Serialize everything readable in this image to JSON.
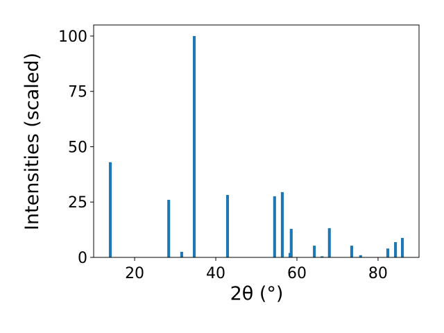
{
  "chart_data": {
    "type": "bar",
    "xlabel": "2θ (°)",
    "ylabel": "Intensities (scaled)",
    "x": [
      14.0,
      28.4,
      31.6,
      34.7,
      42.9,
      54.5,
      56.4,
      58.3,
      58.6,
      64.3,
      66.2,
      68.0,
      73.5,
      75.7,
      82.4,
      84.3,
      86.0
    ],
    "values": [
      43,
      26,
      2.5,
      100,
      28.2,
      27.6,
      29.5,
      2,
      12.9,
      5.3,
      0.5,
      13.2,
      5.3,
      1,
      4,
      6.9,
      8.8
    ],
    "color": "#1f77b4",
    "xlim": [
      9.9,
      90.1
    ],
    "xticks": [
      20,
      40,
      60,
      80
    ],
    "ylim": [
      0,
      105
    ],
    "yticks": [
      0,
      25,
      50,
      75,
      100
    ]
  }
}
